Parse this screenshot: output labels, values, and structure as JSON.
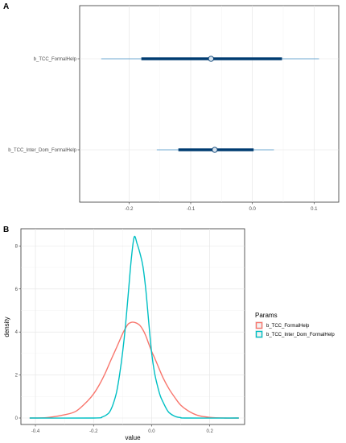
{
  "chart_data": [
    {
      "type": "interval",
      "panel_label": "A",
      "title": "",
      "xlabel": "",
      "ylabel": "",
      "xlim": [
        -0.28,
        0.14
      ],
      "x_ticks": [
        -0.2,
        -0.1,
        0.0,
        0.1
      ],
      "x_tick_labels": [
        "-0.2",
        "-0.1",
        "0.0",
        "0.1"
      ],
      "grid": true,
      "colors": {
        "inner": "#003c71",
        "outer": "#6fa8d2",
        "point_fill": "#d9e4ee",
        "point_stroke": "#003c71"
      },
      "params": [
        {
          "name": "b_TCC_FormalHelp",
          "mean": -0.067,
          "inner": [
            -0.18,
            0.048
          ],
          "outer": [
            -0.245,
            0.108
          ]
        },
        {
          "name": "b_TCC_Inter_Dom_FormalHelp",
          "mean": -0.061,
          "inner": [
            -0.12,
            0.002
          ],
          "outer": [
            -0.155,
            0.035
          ]
        }
      ]
    },
    {
      "type": "density",
      "panel_label": "B",
      "title": "",
      "xlabel": "value",
      "ylabel": "density",
      "xlim": [
        -0.45,
        0.32
      ],
      "ylim": [
        -0.3,
        8.8
      ],
      "x_ticks": [
        -0.4,
        -0.2,
        0.0,
        0.2
      ],
      "x_tick_labels": [
        "-0.4",
        "-0.2",
        "0.0",
        "0.2"
      ],
      "y_ticks": [
        0,
        2,
        4,
        6,
        8
      ],
      "y_tick_labels": [
        "0",
        "2",
        "4",
        "6",
        "8"
      ],
      "grid": true,
      "legend": {
        "title": "Params",
        "position": "right"
      },
      "series": [
        {
          "name": "b_TCC_FormalHelp",
          "color": "#f8766d",
          "x": [
            -0.42,
            -0.36,
            -0.3,
            -0.26,
            -0.22,
            -0.2,
            -0.18,
            -0.16,
            -0.14,
            -0.12,
            -0.1,
            -0.09,
            -0.08,
            -0.07,
            -0.06,
            -0.05,
            -0.04,
            -0.03,
            -0.02,
            -0.01,
            0.0,
            0.01,
            0.02,
            0.04,
            0.06,
            0.08,
            0.1,
            0.13,
            0.16,
            0.2,
            0.25,
            0.3
          ],
          "y": [
            0.0,
            0.02,
            0.15,
            0.32,
            0.8,
            1.12,
            1.55,
            2.08,
            2.7,
            3.3,
            3.92,
            4.18,
            4.38,
            4.45,
            4.45,
            4.4,
            4.3,
            4.1,
            3.82,
            3.45,
            3.1,
            2.8,
            2.48,
            1.85,
            1.35,
            0.95,
            0.6,
            0.3,
            0.12,
            0.03,
            0.0,
            0.0
          ]
        },
        {
          "name": "b_TCC_Inter_Dom_FormalHelp",
          "color": "#00bfc4",
          "x": [
            -0.42,
            -0.2,
            -0.17,
            -0.15,
            -0.14,
            -0.13,
            -0.12,
            -0.11,
            -0.1,
            -0.09,
            -0.08,
            -0.07,
            -0.06,
            -0.05,
            -0.04,
            -0.03,
            -0.02,
            -0.01,
            0.0,
            0.01,
            0.02,
            0.03,
            0.04,
            0.05,
            0.06,
            0.08,
            0.1,
            0.12,
            0.3
          ],
          "y": [
            0.0,
            0.0,
            0.05,
            0.2,
            0.4,
            0.75,
            1.25,
            2.05,
            3.05,
            4.3,
            5.85,
            7.4,
            8.42,
            8.1,
            7.65,
            7.05,
            5.95,
            4.45,
            3.02,
            2.1,
            1.5,
            1.02,
            0.72,
            0.45,
            0.25,
            0.08,
            0.02,
            0.0,
            0.0
          ]
        }
      ]
    }
  ]
}
